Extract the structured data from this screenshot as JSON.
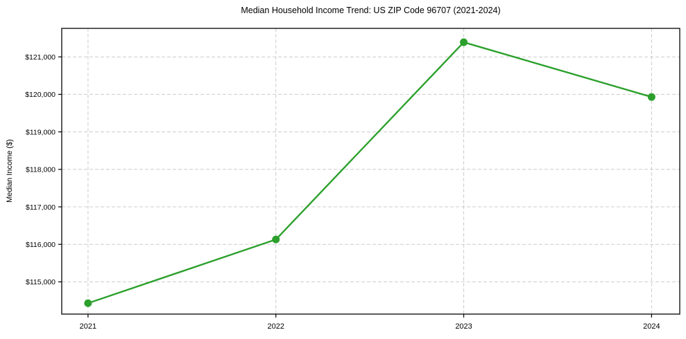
{
  "chart_data": {
    "type": "line",
    "title": "Median Household Income Trend: US ZIP Code 96707 (2021-2024)",
    "ylabel": "Median Income ($)",
    "xlabel": "",
    "x": [
      2021,
      2022,
      2023,
      2024
    ],
    "values": [
      114430,
      116130,
      121390,
      119930
    ],
    "x_ticks": [
      2021,
      2022,
      2023,
      2024
    ],
    "x_tick_labels": [
      "2021",
      "2022",
      "2023",
      "2024"
    ],
    "y_ticks": [
      115000,
      116000,
      117000,
      118000,
      119000,
      120000,
      121000
    ],
    "y_tick_labels": [
      "$115,000",
      "$116,000",
      "$117,000",
      "$118,000",
      "$119,000",
      "$120,000",
      "$121,000"
    ],
    "xlim": [
      2020.86,
      2024.15
    ],
    "ylim": [
      114140,
      121760
    ],
    "grid": true,
    "legend": "none",
    "line_color": "#2ca02c",
    "marker_color": "#2ca02c",
    "grid_color": "#cccccc",
    "axis_color": "#000000"
  }
}
